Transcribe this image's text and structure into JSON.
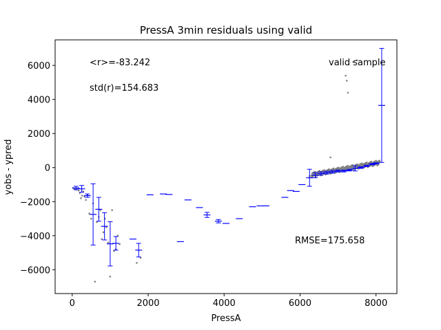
{
  "chart_data": {
    "type": "scatter",
    "title": "PressA 3min residuals using valid",
    "xlabel": "PressA",
    "ylabel": "yobs - ypred",
    "xlim": [
      -450,
      8550
    ],
    "ylim": [
      -7400,
      7500
    ],
    "x_ticks": [
      0,
      2000,
      4000,
      6000,
      8000
    ],
    "y_ticks": [
      -6000,
      -4000,
      -2000,
      0,
      2000,
      4000,
      6000
    ],
    "x_tick_labels": [
      "0",
      "2000",
      "4000",
      "6000",
      "8000"
    ],
    "y_tick_labels": [
      "−6000",
      "−4000",
      "−2000",
      "0",
      "2000",
      "4000",
      "6000"
    ],
    "annotations": {
      "mean": "<r>=-83.242",
      "std": "std(r)=154.683",
      "sample": "valid sample",
      "rmse": "RMSE=175.658"
    },
    "colors": {
      "points": "#808080",
      "bins": "#0000ff"
    },
    "series": [
      {
        "kind": "points",
        "x": [
          20,
          60,
          100,
          140,
          170,
          200,
          230,
          260,
          290,
          320,
          360,
          400,
          450,
          500,
          550,
          600,
          650,
          700,
          740,
          780,
          820,
          860,
          900,
          950,
          1000,
          1050,
          1100,
          1150,
          1200,
          1250,
          1700,
          1800,
          6250,
          6300,
          6350,
          6400,
          6450,
          6500,
          6550,
          6600,
          6650,
          6700,
          6750,
          6800,
          6850,
          6900,
          6950,
          7000,
          7050,
          7100,
          7150,
          7200,
          7250,
          7300,
          7350,
          7400,
          7450,
          7500,
          7550,
          7600,
          7650,
          7700,
          7750,
          7800,
          7850,
          7900,
          7950,
          8000,
          8050,
          8100,
          7200,
          7230,
          7260,
          6800,
          7400,
          7500
        ],
        "y": [
          -1200,
          -1250,
          -1300,
          -1220,
          -1350,
          -1500,
          -1800,
          -1650,
          -1400,
          -1700,
          -1900,
          -1600,
          -2700,
          -3000,
          -2100,
          -6700,
          -3200,
          -2900,
          -2500,
          -4200,
          -3800,
          -3000,
          -3500,
          -4400,
          -6400,
          -2500,
          -4900,
          -4800,
          -4000,
          -4500,
          -5600,
          -5300,
          -500,
          -450,
          -400,
          -350,
          -300,
          -280,
          -260,
          -240,
          -220,
          -200,
          -180,
          -150,
          -140,
          -120,
          -100,
          -80,
          -60,
          -40,
          -20,
          0,
          20,
          40,
          60,
          80,
          100,
          120,
          140,
          160,
          180,
          200,
          220,
          240,
          260,
          280,
          300,
          320,
          340,
          360,
          5400,
          5100,
          4400,
          600,
          6200,
          6300
        ]
      },
      {
        "kind": "binned-errorbars",
        "x": [
          100,
          250,
          400,
          550,
          700,
          850,
          1000,
          1150,
          1600,
          1750,
          2050,
          2400,
          2550,
          2850,
          3050,
          3350,
          3550,
          3850,
          4050,
          4400,
          4750,
          4950,
          5100,
          5600,
          5750,
          5900,
          6050,
          6250,
          6400,
          6550,
          6700,
          6850,
          7000,
          7150,
          7300,
          7450,
          7600,
          7750,
          7900,
          8000,
          8150
        ],
        "y": [
          -1200,
          -1250,
          -1650,
          -2750,
          -2450,
          -3450,
          -4480,
          -4450,
          -4200,
          -4850,
          -1600,
          -1550,
          -1580,
          -4350,
          -1900,
          -2350,
          -2780,
          -3150,
          -3280,
          -3000,
          -2300,
          -2250,
          -2250,
          -1750,
          -1350,
          -1400,
          -1000,
          -600,
          -450,
          -350,
          -300,
          -250,
          -200,
          -200,
          -150,
          -50,
          0,
          100,
          200,
          250,
          3650
        ],
        "err_low": [
          100,
          200,
          100,
          1800,
          700,
          800,
          1300,
          400,
          0,
          400,
          0,
          0,
          0,
          0,
          0,
          0,
          150,
          100,
          0,
          0,
          0,
          0,
          0,
          0,
          0,
          0,
          0,
          500,
          150,
          100,
          80,
          80,
          60,
          60,
          50,
          150,
          50,
          40,
          40,
          30,
          3350
        ],
        "err_high": [
          100,
          200,
          100,
          1800,
          700,
          800,
          1300,
          400,
          0,
          400,
          0,
          0,
          0,
          0,
          0,
          0,
          150,
          100,
          0,
          0,
          0,
          0,
          0,
          0,
          0,
          0,
          0,
          500,
          150,
          100,
          80,
          80,
          60,
          60,
          50,
          150,
          50,
          40,
          40,
          30,
          3350
        ]
      }
    ]
  }
}
